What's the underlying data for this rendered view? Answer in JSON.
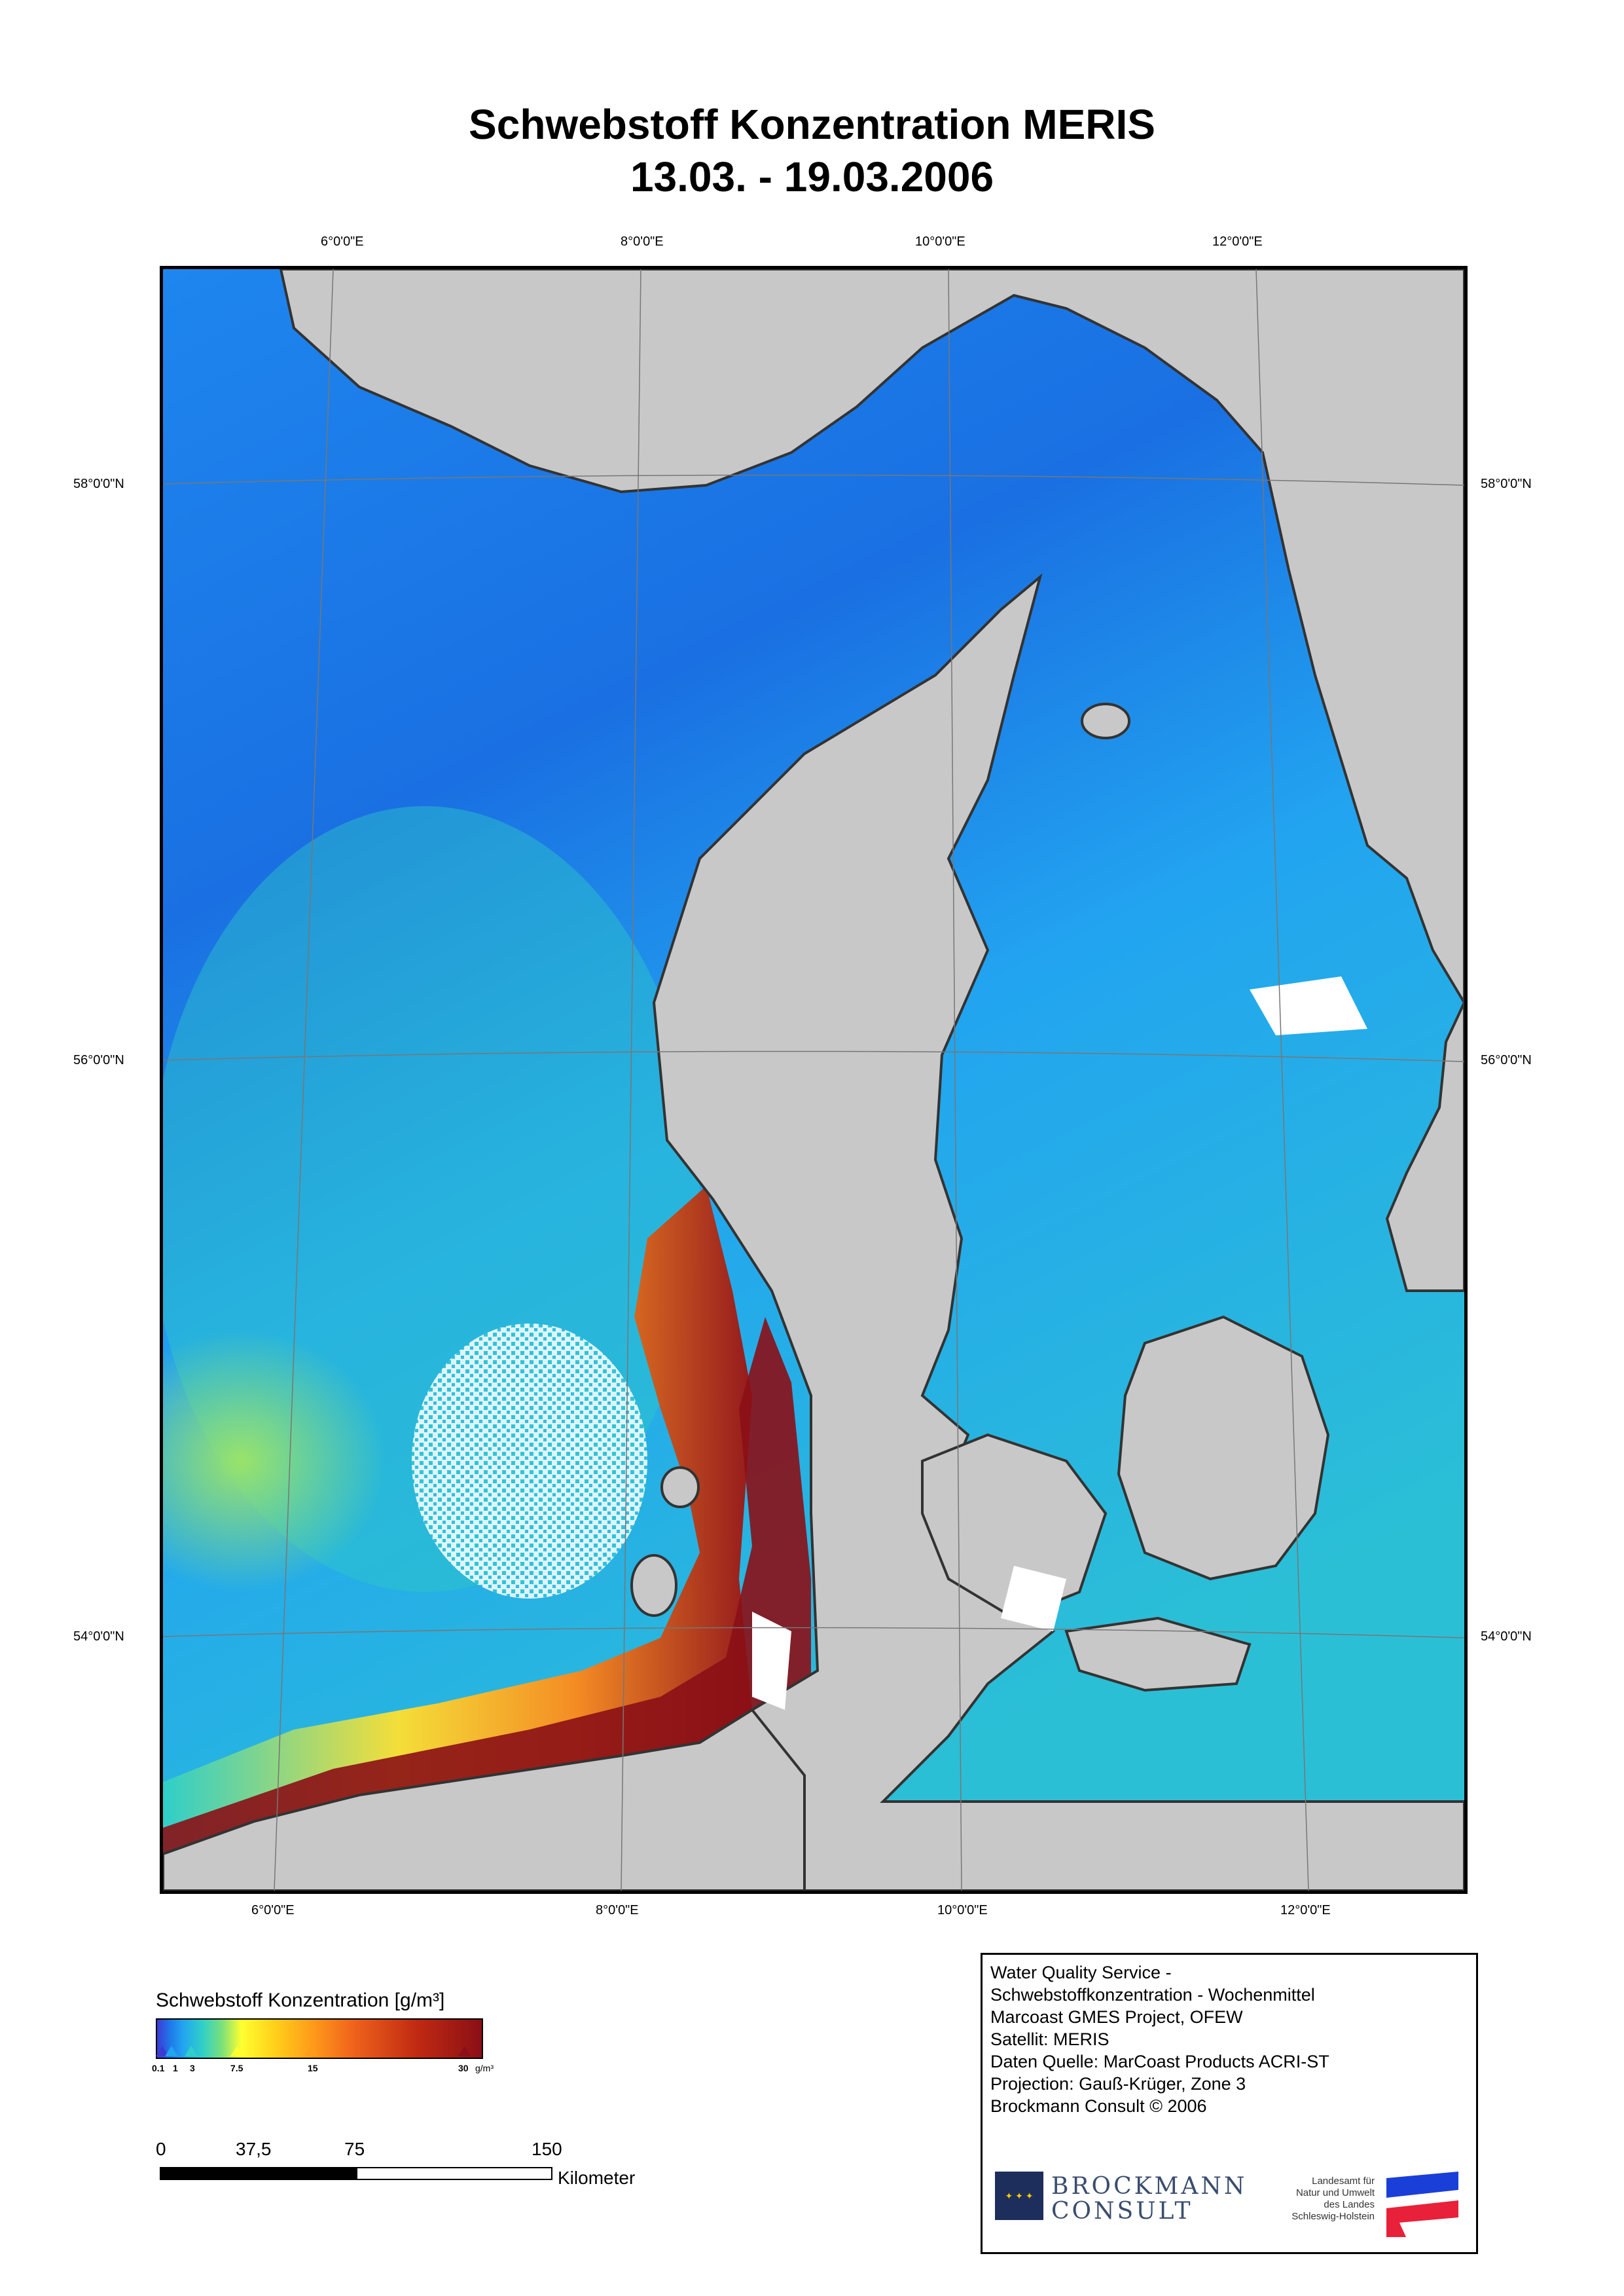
{
  "title": {
    "line1": "Schwebstoff Konzentration MERIS",
    "line2": "13.03. - 19.03.2006"
  },
  "axes": {
    "top_lon": [
      "6°0'0\"E",
      "8°0'0\"E",
      "10°0'0\"E",
      "12°0'0\"E"
    ],
    "bottom_lon": [
      "6°0'0\"E",
      "8°0'0\"E",
      "10°0'0\"E",
      "12°0'0\"E"
    ],
    "left_lat": [
      "58°0'0\"N",
      "56°0'0\"N",
      "54°0'0\"N"
    ],
    "right_lat": [
      "58°0'0\"N",
      "56°0'0\"N",
      "54°0'0\"N"
    ]
  },
  "legend": {
    "title": "Schwebstoff Konzentration [g/m³]",
    "ticks": [
      "0.1",
      "1",
      "3",
      "7.5",
      "15",
      "30"
    ],
    "unit": "g/m³",
    "colors": [
      "#3b3bd6",
      "#22a4f0",
      "#2fd0c8",
      "#ffff30",
      "#ff9a1a",
      "#8b0f16"
    ]
  },
  "scale": {
    "labels": [
      "0",
      "37,5",
      "75",
      "150"
    ],
    "unit": "Kilometer"
  },
  "info": {
    "lines": [
      "Water Quality Service -",
      "Schwebstoffkonzentration - Wochenmittel",
      "Marcoast GMES Project, OFEW",
      "Satellit: MERIS",
      "Daten Quelle: MarCoast Products ACRI-ST",
      "Projection: Gauß-Krüger, Zone 3",
      "Brockmann Consult © 2006"
    ]
  },
  "logos": {
    "brockmann": {
      "line1": "BROCKMANN",
      "line2": "CONSULT"
    },
    "lsh": {
      "lines": [
        "Landesamt für",
        "Natur und Umwelt",
        "des Landes",
        "Schleswig-Holstein"
      ]
    }
  },
  "colors": {
    "land": "#c8c8c8",
    "sea_low": "#22a4f0",
    "sea_mid": "#2fd0c8",
    "sea_high": "#8b0f16"
  }
}
